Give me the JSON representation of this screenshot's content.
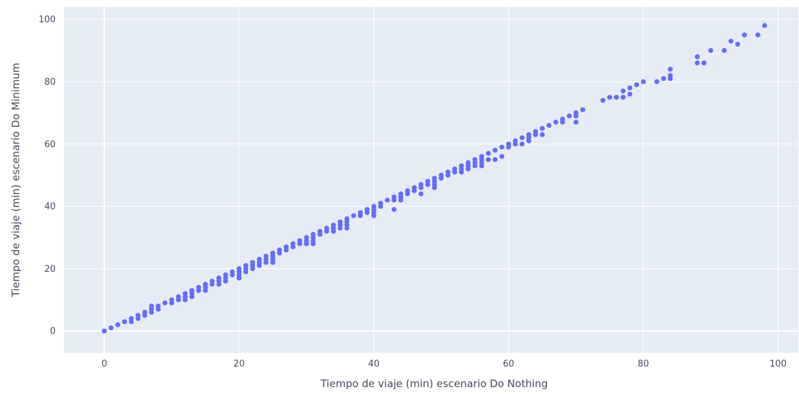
{
  "chart_data": {
    "type": "scatter",
    "xlabel": "Tiempo de viaje (min) escenario Do Nothing",
    "ylabel": "Tiempo de viaje (min) escenario Do Minimum",
    "xlim": [
      -6,
      103
    ],
    "ylim": [
      -7,
      104
    ],
    "x_ticks": [
      0,
      20,
      40,
      60,
      80,
      100
    ],
    "y_ticks": [
      0,
      20,
      40,
      60,
      80,
      100
    ],
    "grid": true,
    "colors": {
      "marker": "#636efa",
      "plot_bg": "#e5ecf6",
      "grid": "#ffffff",
      "text": "#444a5c"
    },
    "series": [
      {
        "points": [
          [
            0,
            0
          ],
          [
            1,
            1
          ],
          [
            2,
            2
          ],
          [
            3,
            3
          ],
          [
            4,
            3
          ],
          [
            4,
            4
          ],
          [
            5,
            4
          ],
          [
            5,
            5
          ],
          [
            6,
            5
          ],
          [
            6,
            6
          ],
          [
            7,
            6
          ],
          [
            7,
            7
          ],
          [
            7,
            8
          ],
          [
            8,
            7
          ],
          [
            8,
            8
          ],
          [
            9,
            9
          ],
          [
            10,
            9
          ],
          [
            10,
            10
          ],
          [
            11,
            10
          ],
          [
            11,
            11
          ],
          [
            12,
            10
          ],
          [
            12,
            11
          ],
          [
            12,
            12
          ],
          [
            13,
            11
          ],
          [
            13,
            12
          ],
          [
            13,
            13
          ],
          [
            14,
            13
          ],
          [
            14,
            14
          ],
          [
            15,
            13
          ],
          [
            15,
            14
          ],
          [
            15,
            15
          ],
          [
            16,
            15
          ],
          [
            16,
            16
          ],
          [
            17,
            15
          ],
          [
            17,
            16
          ],
          [
            17,
            17
          ],
          [
            18,
            16
          ],
          [
            18,
            17
          ],
          [
            18,
            18
          ],
          [
            19,
            18
          ],
          [
            19,
            19
          ],
          [
            20,
            17
          ],
          [
            20,
            18
          ],
          [
            20,
            19
          ],
          [
            20,
            20
          ],
          [
            21,
            19
          ],
          [
            21,
            20
          ],
          [
            21,
            21
          ],
          [
            22,
            20
          ],
          [
            22,
            21
          ],
          [
            22,
            22
          ],
          [
            23,
            21
          ],
          [
            23,
            22
          ],
          [
            23,
            23
          ],
          [
            24,
            22
          ],
          [
            24,
            23
          ],
          [
            24,
            24
          ],
          [
            25,
            22
          ],
          [
            25,
            23
          ],
          [
            25,
            24
          ],
          [
            25,
            25
          ],
          [
            26,
            25
          ],
          [
            26,
            26
          ],
          [
            27,
            26
          ],
          [
            27,
            27
          ],
          [
            28,
            27
          ],
          [
            28,
            28
          ],
          [
            29,
            28
          ],
          [
            29,
            29
          ],
          [
            30,
            28
          ],
          [
            30,
            29
          ],
          [
            30,
            30
          ],
          [
            31,
            28
          ],
          [
            31,
            29
          ],
          [
            31,
            30
          ],
          [
            31,
            31
          ],
          [
            32,
            31
          ],
          [
            32,
            32
          ],
          [
            33,
            32
          ],
          [
            33,
            33
          ],
          [
            34,
            32
          ],
          [
            34,
            33
          ],
          [
            34,
            34
          ],
          [
            35,
            33
          ],
          [
            35,
            34
          ],
          [
            35,
            35
          ],
          [
            36,
            33
          ],
          [
            36,
            34
          ],
          [
            36,
            35
          ],
          [
            36,
            36
          ],
          [
            37,
            37
          ],
          [
            38,
            37
          ],
          [
            38,
            38
          ],
          [
            39,
            38
          ],
          [
            39,
            39
          ],
          [
            40,
            37
          ],
          [
            40,
            38
          ],
          [
            40,
            39
          ],
          [
            40,
            40
          ],
          [
            41,
            40
          ],
          [
            41,
            41
          ],
          [
            42,
            42
          ],
          [
            43,
            39
          ],
          [
            43,
            42
          ],
          [
            43,
            43
          ],
          [
            44,
            42
          ],
          [
            44,
            43
          ],
          [
            44,
            44
          ],
          [
            45,
            44
          ],
          [
            45,
            45
          ],
          [
            46,
            45
          ],
          [
            46,
            46
          ],
          [
            47,
            44
          ],
          [
            47,
            46
          ],
          [
            47,
            47
          ],
          [
            48,
            47
          ],
          [
            48,
            48
          ],
          [
            49,
            46
          ],
          [
            49,
            47
          ],
          [
            49,
            48
          ],
          [
            49,
            49
          ],
          [
            50,
            49
          ],
          [
            50,
            50
          ],
          [
            51,
            50
          ],
          [
            51,
            51
          ],
          [
            52,
            51
          ],
          [
            52,
            52
          ],
          [
            53,
            51
          ],
          [
            53,
            52
          ],
          [
            53,
            53
          ],
          [
            54,
            52
          ],
          [
            54,
            53
          ],
          [
            54,
            54
          ],
          [
            55,
            53
          ],
          [
            55,
            54
          ],
          [
            55,
            55
          ],
          [
            56,
            53
          ],
          [
            56,
            54
          ],
          [
            56,
            55
          ],
          [
            56,
            56
          ],
          [
            57,
            55
          ],
          [
            57,
            57
          ],
          [
            58,
            55
          ],
          [
            58,
            58
          ],
          [
            59,
            56
          ],
          [
            59,
            59
          ],
          [
            60,
            59
          ],
          [
            60,
            60
          ],
          [
            61,
            60
          ],
          [
            61,
            61
          ],
          [
            62,
            60
          ],
          [
            62,
            62
          ],
          [
            63,
            61
          ],
          [
            63,
            62
          ],
          [
            63,
            63
          ],
          [
            64,
            63
          ],
          [
            64,
            64
          ],
          [
            65,
            63
          ],
          [
            65,
            65
          ],
          [
            66,
            66
          ],
          [
            67,
            67
          ],
          [
            68,
            67
          ],
          [
            68,
            68
          ],
          [
            69,
            69
          ],
          [
            70,
            67
          ],
          [
            70,
            69
          ],
          [
            70,
            70
          ],
          [
            71,
            71
          ],
          [
            74,
            74
          ],
          [
            75,
            75
          ],
          [
            76,
            75
          ],
          [
            77,
            75
          ],
          [
            77,
            77
          ],
          [
            78,
            76
          ],
          [
            78,
            78
          ],
          [
            79,
            79
          ],
          [
            80,
            80
          ],
          [
            82,
            80
          ],
          [
            83,
            81
          ],
          [
            84,
            81
          ],
          [
            84,
            82
          ],
          [
            84,
            84
          ],
          [
            88,
            86
          ],
          [
            88,
            88
          ],
          [
            89,
            86
          ],
          [
            90,
            90
          ],
          [
            92,
            90
          ],
          [
            93,
            93
          ],
          [
            94,
            92
          ],
          [
            95,
            95
          ],
          [
            97,
            95
          ],
          [
            98,
            98
          ]
        ]
      }
    ]
  }
}
